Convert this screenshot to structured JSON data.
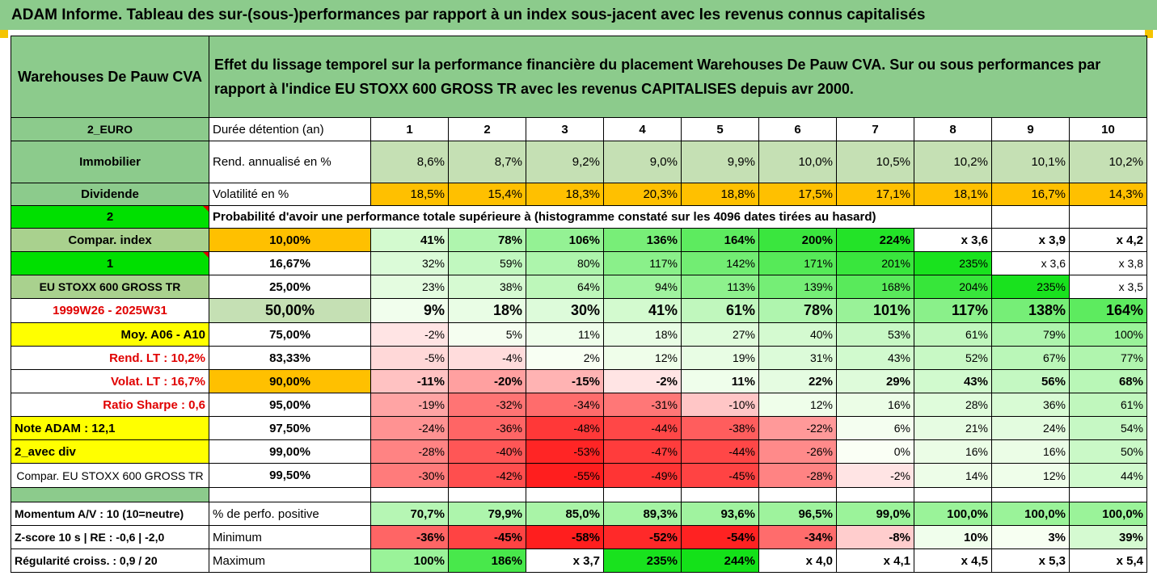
{
  "title": "ADAM Informe. Tableau des sur-(sous-)performances par rapport à un index sous-jacent avec les revenus connus capitalisés",
  "colors": {
    "header_green": "#8ccb8c",
    "orange": "#ffc000",
    "yellow": "#ffff00",
    "red_text": "#e00000",
    "lime": "#00e000"
  },
  "header": {
    "asset": "Warehouses De Pauw CVA",
    "description": "Effet du lissage temporel sur la performance financière du placement Warehouses De Pauw CVA. Sur ou sous performances par rapport à l'indice EU STOXX 600 GROSS TR avec les revenus CAPITALISES depuis avr 2000."
  },
  "years_row": {
    "left": "2_EURO",
    "label": "Durée détention (an)",
    "years": [
      "1",
      "2",
      "3",
      "4",
      "5",
      "6",
      "7",
      "8",
      "9",
      "10"
    ]
  },
  "rend_row": {
    "left": "Immobilier",
    "label": "Rend. annualisé en %",
    "values": [
      "8,6%",
      "8,7%",
      "9,2%",
      "9,0%",
      "9,9%",
      "10,0%",
      "10,5%",
      "10,2%",
      "10,1%",
      "10,2%"
    ]
  },
  "vol_row": {
    "left": "Dividende",
    "label": "Volatilité en %",
    "values": [
      "18,5%",
      "15,4%",
      "18,3%",
      "20,3%",
      "18,8%",
      "17,5%",
      "17,1%",
      "18,1%",
      "16,7%",
      "14,3%"
    ]
  },
  "prob_row": {
    "left": "2",
    "label": "Probabilité d'avoir une performance totale supérieure à (histogramme constaté sur les 4096 dates tirées au hasard)"
  },
  "prob_rows": [
    {
      "left": "Compar. index",
      "pct": "10,00%",
      "values": [
        "41%",
        "78%",
        "106%",
        "136%",
        "164%",
        "200%",
        "224%",
        "x 3,6",
        "x 3,9",
        "x 4,2"
      ]
    },
    {
      "left": "1",
      "pct": "16,67%",
      "values": [
        "32%",
        "59%",
        "80%",
        "117%",
        "142%",
        "171%",
        "201%",
        "235%",
        "x 3,6",
        "x 3,8"
      ]
    },
    {
      "left": "EU STOXX 600 GROSS TR",
      "pct": "25,00%",
      "values": [
        "23%",
        "38%",
        "64%",
        "94%",
        "113%",
        "139%",
        "168%",
        "204%",
        "235%",
        "x 3,5"
      ]
    },
    {
      "left": "1999W26 - 2025W31",
      "pct": "50,00%",
      "values": [
        "9%",
        "18%",
        "30%",
        "41%",
        "61%",
        "78%",
        "101%",
        "117%",
        "138%",
        "164%"
      ]
    },
    {
      "left": "Moy. A06 - A10",
      "pct": "75,00%",
      "values": [
        "-2%",
        "5%",
        "11%",
        "18%",
        "27%",
        "40%",
        "53%",
        "61%",
        "79%",
        "100%"
      ]
    },
    {
      "left": "Rend. LT :   10,2%",
      "pct": "83,33%",
      "values": [
        "-5%",
        "-4%",
        "2%",
        "12%",
        "19%",
        "31%",
        "43%",
        "52%",
        "67%",
        "77%"
      ]
    },
    {
      "left": "Volat. LT :   16,7%",
      "pct": "90,00%",
      "values": [
        "-11%",
        "-20%",
        "-15%",
        "-2%",
        "11%",
        "22%",
        "29%",
        "43%",
        "56%",
        "68%"
      ]
    },
    {
      "left": "Ratio Sharpe :    0,6",
      "pct": "95,00%",
      "values": [
        "-19%",
        "-32%",
        "-34%",
        "-31%",
        "-10%",
        "12%",
        "16%",
        "28%",
        "36%",
        "61%"
      ]
    },
    {
      "left": "Note ADAM : 12,1",
      "pct": "97,50%",
      "values": [
        "-24%",
        "-36%",
        "-48%",
        "-44%",
        "-38%",
        "-22%",
        "6%",
        "21%",
        "24%",
        "54%"
      ]
    },
    {
      "left": "2_avec div",
      "pct": "99,00%",
      "values": [
        "-28%",
        "-40%",
        "-53%",
        "-47%",
        "-44%",
        "-26%",
        "0%",
        "16%",
        "16%",
        "50%"
      ]
    },
    {
      "left": "Compar. EU STOXX 600 GROSS TR",
      "pct": "99,50%",
      "values": [
        "-30%",
        "-42%",
        "-55%",
        "-49%",
        "-45%",
        "-28%",
        "-2%",
        "14%",
        "12%",
        "44%"
      ]
    }
  ],
  "bottom_rows": [
    {
      "left": "Momentum A/V : 10 (10=neutre)",
      "label": "% de perfo. positive",
      "values": [
        "70,7%",
        "79,9%",
        "85,0%",
        "89,3%",
        "93,6%",
        "96,5%",
        "99,0%",
        "100,0%",
        "100,0%",
        "100,0%"
      ]
    },
    {
      "left": "Z-score 10 s  | RE : -0,6  | -2,0",
      "label": "Minimum",
      "values": [
        "-36%",
        "-45%",
        "-58%",
        "-52%",
        "-54%",
        "-34%",
        "-8%",
        "10%",
        "3%",
        "39%"
      ]
    },
    {
      "left": "Régularité croiss. : 0,9 / 20",
      "label": "Maximum",
      "values": [
        "100%",
        "186%",
        "x 3,7",
        "235%",
        "244%",
        "x 4,0",
        "x 4,1",
        "x 4,5",
        "x 5,3",
        "x 5,4"
      ]
    }
  ]
}
